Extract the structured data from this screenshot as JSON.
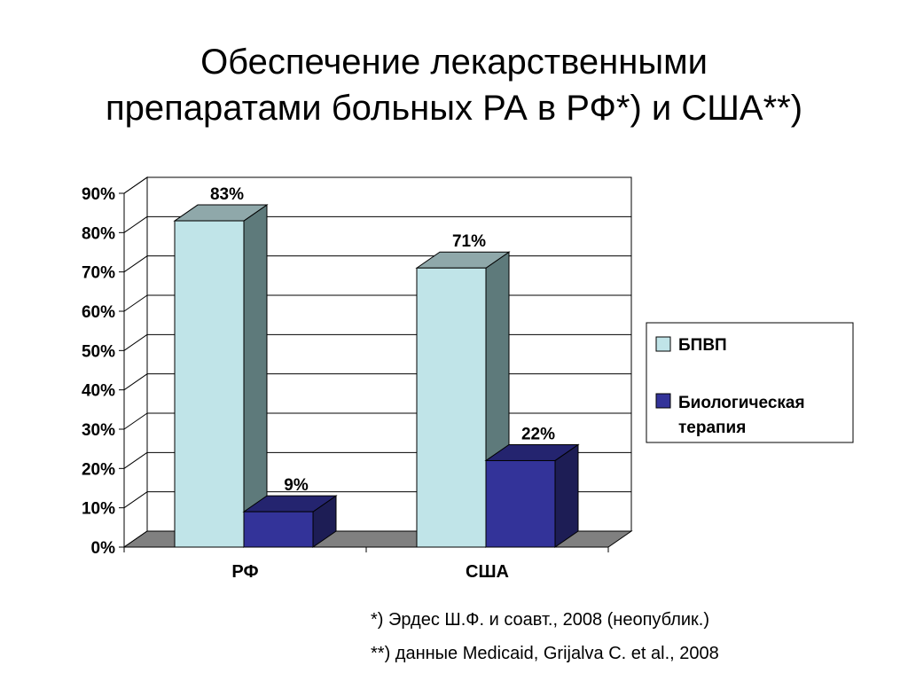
{
  "slide": {
    "title_lines": [
      "Обеспечение лекарственными",
      "препаратами больных РА в РФ*) и США**)"
    ],
    "footnotes": [
      "*) Эрдес Ш.Ф. и соавт., 2008 (неопублик.)",
      "**) данные Medicaid, Grijalva C. et al., 2008"
    ]
  },
  "chart_data": {
    "type": "bar",
    "style": "3d-clustered-column",
    "categories": [
      "РФ",
      "США"
    ],
    "series": [
      {
        "name": "БПВП",
        "values": [
          83,
          71
        ],
        "labels": [
          "83%",
          "71%"
        ],
        "color": "#c0e4e8",
        "side_color": "#5e7a7b",
        "top_color": "#8fa8aa"
      },
      {
        "name": "Биологическая терапия",
        "values": [
          9,
          22
        ],
        "labels": [
          "9%",
          "22%"
        ],
        "color": "#333399",
        "side_color": "#1d1d55",
        "top_color": "#24246f"
      }
    ],
    "ylim": [
      0,
      90
    ],
    "y_ticks": [
      "0%",
      "10%",
      "20%",
      "30%",
      "40%",
      "50%",
      "60%",
      "70%",
      "80%",
      "90%"
    ],
    "y_format": "percent",
    "grid": true,
    "legend_position": "right",
    "legend_entries": [
      "БПВП",
      "Биологическая",
      "терапия"
    ],
    "title": "",
    "xlabel": "",
    "ylabel": "",
    "floor_color": "#808080",
    "grid_color": "#000000"
  }
}
